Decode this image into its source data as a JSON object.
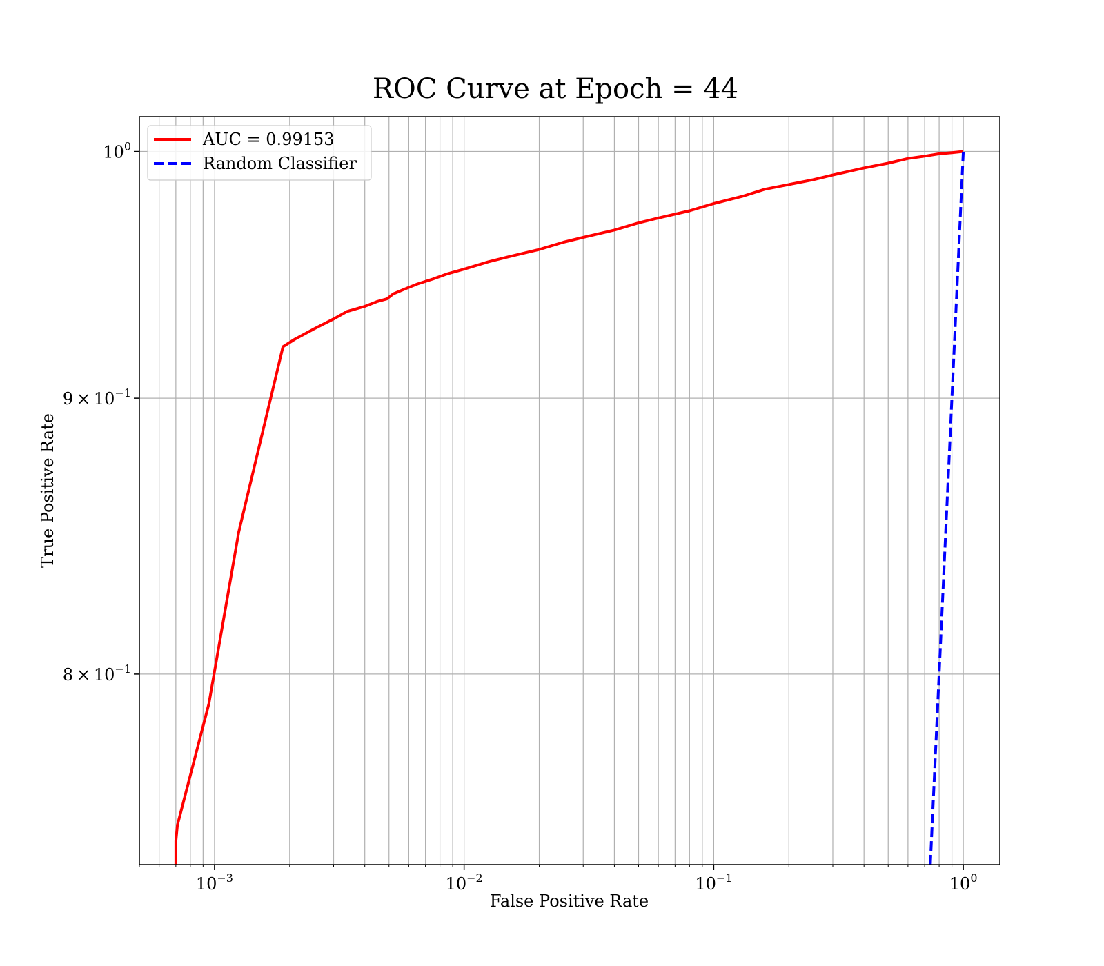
{
  "chart_data": {
    "type": "line",
    "title": "ROC Curve at Epoch = 44",
    "xlabel": "False Positive Rate",
    "ylabel": "True Positive Rate",
    "xscale": "log",
    "yscale": "log",
    "xlim": [
      0.0005,
      1.4
    ],
    "ylim": [
      0.7375,
      1.015
    ],
    "grid": "major and minor",
    "legend_position": "top-left",
    "x_ticks": [
      {
        "value": 0.001,
        "base": "10",
        "exp": "−3"
      },
      {
        "value": 0.01,
        "base": "10",
        "exp": "−2"
      },
      {
        "value": 0.1,
        "base": "10",
        "exp": "−1"
      },
      {
        "value": 1,
        "base": "10",
        "exp": "0"
      }
    ],
    "y_ticks": [
      {
        "value": 1.0,
        "mantissa": "",
        "base": "10",
        "exp": "0"
      },
      {
        "value": 0.9,
        "mantissa": "9",
        "base": "10",
        "exp": "−1"
      },
      {
        "value": 0.8,
        "mantissa": "8",
        "base": "10",
        "exp": "−1"
      }
    ],
    "series": [
      {
        "name": "AUC = 0.99153",
        "color": "#ff0000",
        "style": "solid",
        "x": [
          0.0007,
          0.0007,
          0.00071,
          0.00095,
          0.00125,
          0.00188,
          0.0021,
          0.0025,
          0.003,
          0.0034,
          0.004,
          0.0045,
          0.0049,
          0.0052,
          0.0058,
          0.0065,
          0.0075,
          0.0085,
          0.01,
          0.0125,
          0.015,
          0.02,
          0.025,
          0.03,
          0.04,
          0.05,
          0.06,
          0.08,
          0.1,
          0.13,
          0.16,
          0.2,
          0.25,
          0.3,
          0.4,
          0.5,
          0.6,
          0.7,
          0.8,
          0.9,
          1.0
        ],
        "y": [
          0.7375,
          0.745,
          0.75,
          0.79,
          0.85,
          0.92,
          0.923,
          0.927,
          0.931,
          0.934,
          0.936,
          0.938,
          0.939,
          0.941,
          0.943,
          0.945,
          0.947,
          0.949,
          0.951,
          0.954,
          0.956,
          0.959,
          0.962,
          0.964,
          0.967,
          0.97,
          0.972,
          0.975,
          0.978,
          0.981,
          0.984,
          0.986,
          0.988,
          0.99,
          0.993,
          0.995,
          0.997,
          0.998,
          0.999,
          0.9995,
          1.0
        ]
      },
      {
        "name": "Random Classifier",
        "color": "#0000ff",
        "style": "dashed",
        "x": [
          0.7375,
          1.0
        ],
        "y": [
          0.7375,
          1.0
        ]
      }
    ]
  }
}
